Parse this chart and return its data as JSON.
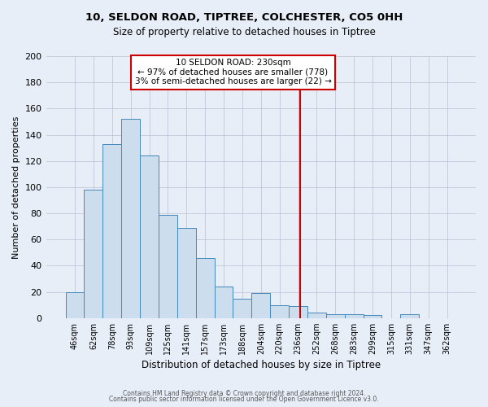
{
  "title": "10, SELDON ROAD, TIPTREE, COLCHESTER, CO5 0HH",
  "subtitle": "Size of property relative to detached houses in Tiptree",
  "xlabel": "Distribution of detached houses by size in Tiptree",
  "ylabel": "Number of detached properties",
  "bar_labels": [
    "46sqm",
    "62sqm",
    "78sqm",
    "93sqm",
    "109sqm",
    "125sqm",
    "141sqm",
    "157sqm",
    "173sqm",
    "188sqm",
    "204sqm",
    "220sqm",
    "236sqm",
    "252sqm",
    "268sqm",
    "283sqm",
    "299sqm",
    "315sqm",
    "331sqm",
    "347sqm",
    "362sqm"
  ],
  "bar_values": [
    20,
    98,
    133,
    152,
    124,
    79,
    69,
    46,
    24,
    15,
    19,
    10,
    9,
    4,
    3,
    3,
    2,
    0,
    3,
    0,
    0
  ],
  "bar_color": "#ccdded",
  "bar_edge_color": "#4488bb",
  "reference_line_color": "#cc0000",
  "annotation_title": "10 SELDON ROAD: 230sqm",
  "annotation_line1": "← 97% of detached houses are smaller (778)",
  "annotation_line2": "3% of semi-detached houses are larger (22) →",
  "annotation_box_edge": "#cc0000",
  "ylim": [
    0,
    200
  ],
  "yticks": [
    0,
    20,
    40,
    60,
    80,
    100,
    120,
    140,
    160,
    180,
    200
  ],
  "footer1": "Contains HM Land Registry data © Crown copyright and database right 2024.",
  "footer2": "Contains public sector information licensed under the Open Government Licence v3.0.",
  "bg_color": "#e8eef8"
}
